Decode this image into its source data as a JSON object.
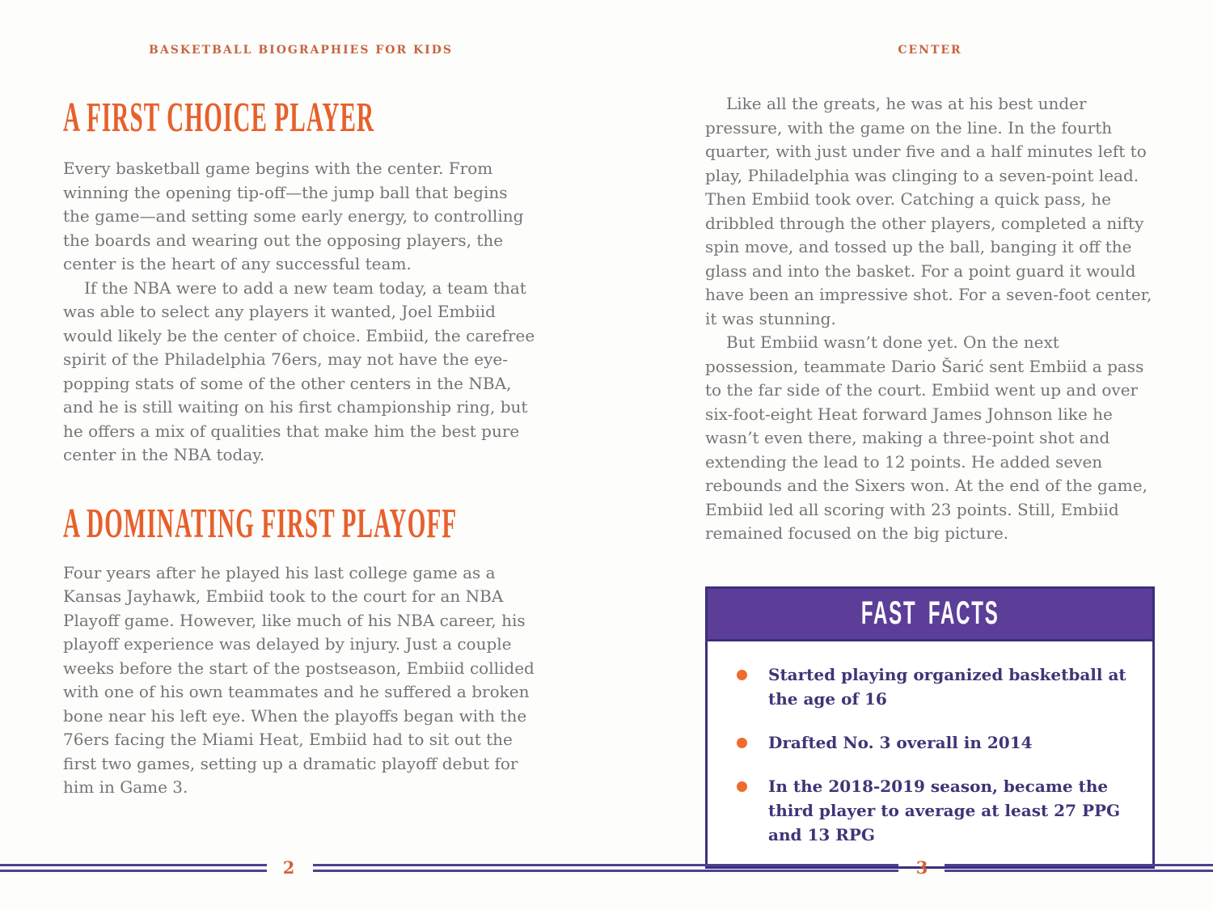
{
  "colors": {
    "heading_orange": "#e7602b",
    "running_head_orange": "#c7653f",
    "body_gray": "#747474",
    "fact_text_indigo": "#3e3576",
    "fast_facts_header_purple": "#5c3e99",
    "fast_facts_border": "#3c2f7d",
    "bullet_orange": "#f06b2b",
    "footer_rule_indigo": "#4c4090",
    "page_number_orange": "#d4603a",
    "background": "#fdfdfc"
  },
  "left_page": {
    "running_head": "BASKETBALL BIOGRAPHIES FOR KIDS",
    "page_number": "2",
    "sections": [
      {
        "heading": "A FIRST CHOICE PLAYER",
        "paragraphs": [
          "Every basketball game begins with the center. From winning the opening tip-off—the jump ball that begins the game—and setting some early energy, to controlling the boards and wearing out the opposing players, the center is the heart of any successful team.",
          "If the NBA were to add a new team today, a team that was able to select any players it wanted, Joel Embiid would likely be the center of choice. Embiid, the carefree spirit of the Philadelphia 76ers, may not have the eye-popping stats of some of the other centers in the NBA, and he is still waiting on his first championship ring, but he offers a mix of qualities that make him the best pure center in the NBA today."
        ]
      },
      {
        "heading": "A DOMINATING FIRST PLAYOFF",
        "paragraphs": [
          "Four years after he played his last college game as a Kansas Jayhawk, Embiid took to the court for an NBA Playoff game. However, like much of his NBA career, his playoff experience was delayed by injury. Just a couple weeks before the start of the postseason, Embiid collided with one of his own teammates and he suffered a broken bone near his left eye. When the playoffs began with the 76ers facing the Miami Heat, Embiid had to sit out the first two games, setting up a dramatic playoff debut for him in Game 3."
        ]
      }
    ]
  },
  "right_page": {
    "running_head": "CENTER",
    "page_number": "3",
    "paragraphs": [
      "Like all the greats, he was at his best under pressure, with the game on the line. In the fourth quarter, with just under five and a half minutes left to play, Philadelphia was clinging to a seven-point lead. Then Embiid took over. Catching a quick pass, he dribbled through the other players, completed a nifty spin move, and tossed up the ball, banging it off the glass and into the basket. For a point guard it would have been an impressive shot. For a seven-foot center, it was stunning.",
      "But Embiid wasn’t done yet. On the next possession, teammate Dario Šarić sent Embiid a pass to the far side of the court. Embiid went up and over six-foot-eight Heat forward James Johnson like he wasn’t even there, making a three-point shot and extending the lead to 12 points. He added seven rebounds and the Sixers won. At the end of the game, Embiid led all scoring with 23 points. Still, Embiid remained focused on the big picture.",
      "Embiid remained focused on the big picture."
    ],
    "fast_facts": {
      "title": "FAST FACTS",
      "bullet_icon": "filled-circle",
      "items": [
        "Started playing organized basketball at the age of 16",
        "Drafted No. 3 overall in 2014",
        "In the 2018-2019 season, became the third player to average at least 27 PPG and 13 RPG"
      ]
    }
  }
}
